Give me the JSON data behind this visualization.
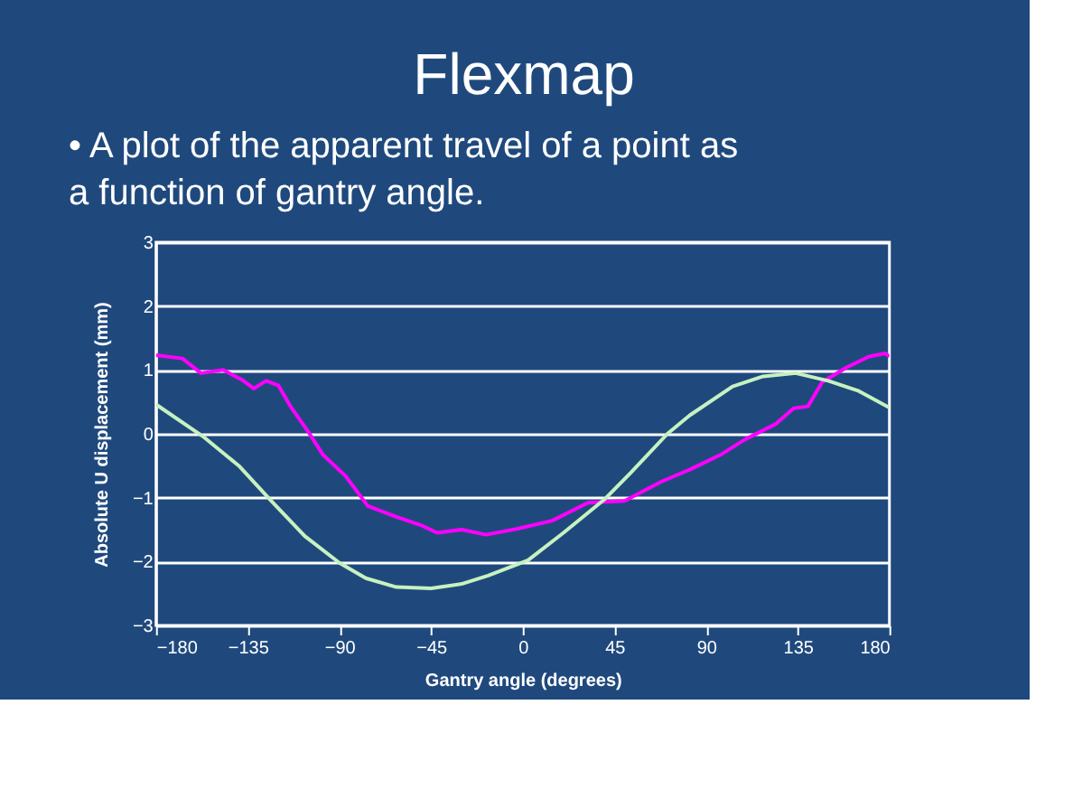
{
  "chart_data": {
    "type": "line",
    "title": "Flexmap",
    "subtitle": "• A plot of the apparent travel of a point as a function of gantry angle.",
    "xlabel": "Gantry angle (degrees)",
    "ylabel": "Absolute U displacement (mm)",
    "xlim": [
      -180,
      180
    ],
    "xticks": [
      -180,
      -135,
      -90,
      -45,
      0,
      45,
      90,
      135,
      180
    ],
    "ylim": [
      -3,
      3
    ],
    "yticks": [
      -3,
      -2,
      -1,
      0,
      1,
      2,
      3
    ],
    "grid": "y",
    "legend": false,
    "marker": "none",
    "line_style": "solid",
    "series": [
      {
        "color": "#ff00ff",
        "x": [
          -180,
          -167,
          -158,
          -147,
          -138,
          -132,
          -126,
          -120,
          -114,
          -105,
          -98,
          -87,
          -76,
          -62,
          -50,
          -42,
          -30,
          -18,
          -3,
          14.5,
          32,
          50,
          68,
          82,
          97,
          109,
          124,
          133,
          140,
          147,
          159,
          170,
          178,
          180
        ],
        "values": [
          1.23,
          1.18,
          0.95,
          1.0,
          0.85,
          0.71,
          0.83,
          0.76,
          0.43,
          0.02,
          -0.33,
          -0.66,
          -1.13,
          -1.3,
          -1.43,
          -1.55,
          -1.5,
          -1.58,
          -1.49,
          -1.36,
          -1.08,
          -1.05,
          -0.75,
          -0.56,
          -0.33,
          -0.09,
          0.15,
          0.4,
          0.43,
          0.81,
          1.04,
          1.21,
          1.26,
          1.21
        ]
      },
      {
        "color": "#c6f2c0",
        "x": [
          -180,
          -157,
          -139,
          -124,
          -107,
          -90,
          -77,
          -62,
          -45,
          -30,
          -17,
          2.6,
          20,
          40,
          53,
          71,
          82,
          103,
          118,
          134,
          150,
          165,
          180
        ],
        "values": [
          0.46,
          -0.04,
          -0.51,
          -1.03,
          -1.6,
          -2.02,
          -2.26,
          -2.4,
          -2.42,
          -2.35,
          -2.22,
          -1.98,
          -1.55,
          -1.03,
          -0.61,
          0.0,
          0.29,
          0.74,
          0.9,
          0.95,
          0.83,
          0.67,
          0.41
        ]
      }
    ]
  }
}
